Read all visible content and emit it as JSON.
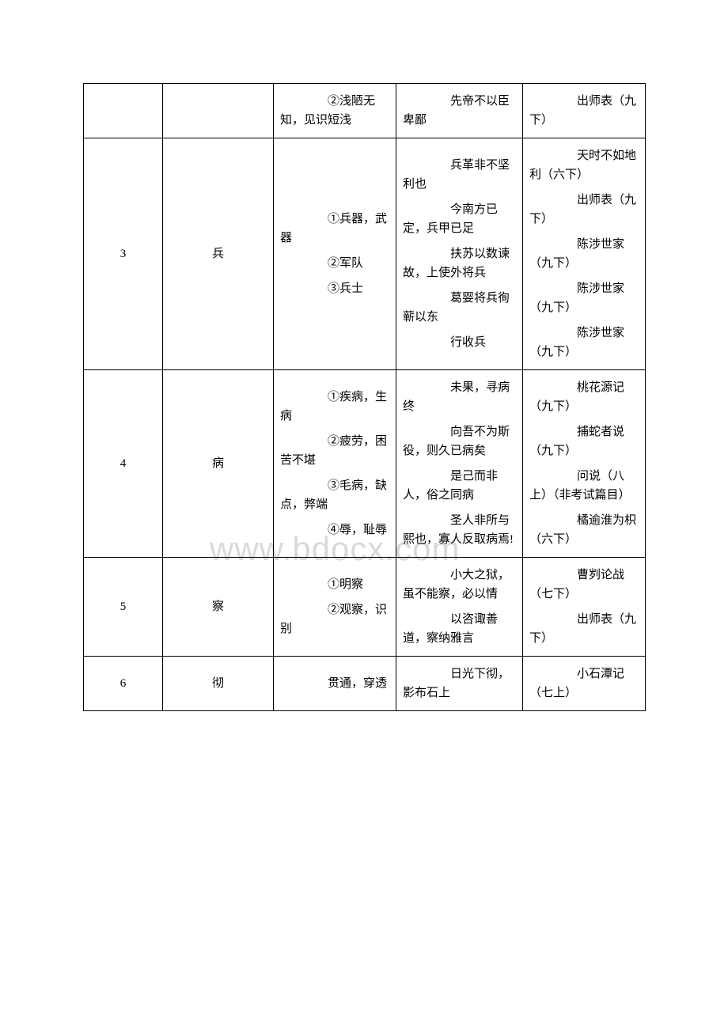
{
  "watermark": "www.bdocx.com",
  "rows": [
    {
      "num": "",
      "char": "",
      "meanings": [
        "　　②浅陋无知，见识短浅"
      ],
      "examples": [
        "　　先帝不以臣卑鄙"
      ],
      "sources": [
        "　　出师表（九下）"
      ]
    },
    {
      "num": "3",
      "char": "兵",
      "meanings": [
        "　　①兵器，武器",
        "　　②军队",
        "　　③兵士"
      ],
      "examples": [
        "　　兵革非不坚利也",
        "　　今南方已定，兵甲已足",
        "　　扶苏以数谏故，上使外将兵",
        "　　葛婴将兵徇蕲以东",
        "　　行收兵"
      ],
      "sources": [
        "　　天时不如地利（六下）",
        "　　出师表（九下）",
        "　　陈涉世家（九下）",
        "　　陈涉世家（九下）",
        "　　陈涉世家（九下）"
      ]
    },
    {
      "num": "4",
      "char": "病",
      "meanings": [
        "　　①疾病，生病",
        "　　②疲劳，困苦不堪",
        "　　③毛病，缺点，弊端",
        "　　④辱，耻辱"
      ],
      "examples": [
        "　　未果，寻病终",
        "　　向吾不为斯役，则久已病矣",
        "　　是己而非人，俗之同病",
        "　　圣人非所与熙也，寡人反取病焉!"
      ],
      "sources": [
        "　　桃花源记（九下）",
        "　　捕蛇者说（九下）",
        "　　问说（八上）（非考试篇目）",
        "　　橘逾淮为枳（六下）"
      ]
    },
    {
      "num": "5",
      "char": "察",
      "meanings": [
        "　　①明察",
        "　　②观察，识别"
      ],
      "examples": [
        "　　小大之狱，虽不能察，必以情",
        "　　以咨诹善道，察纳雅言"
      ],
      "sources": [
        "　　曹刿论战（七下）",
        "　　出师表（九下）"
      ]
    },
    {
      "num": "6",
      "char": "彻",
      "meanings": [
        "　　贯通，穿透"
      ],
      "examples": [
        "　　日光下彻，影布石上"
      ],
      "sources": [
        "　　小石潭记（七上）"
      ]
    }
  ]
}
